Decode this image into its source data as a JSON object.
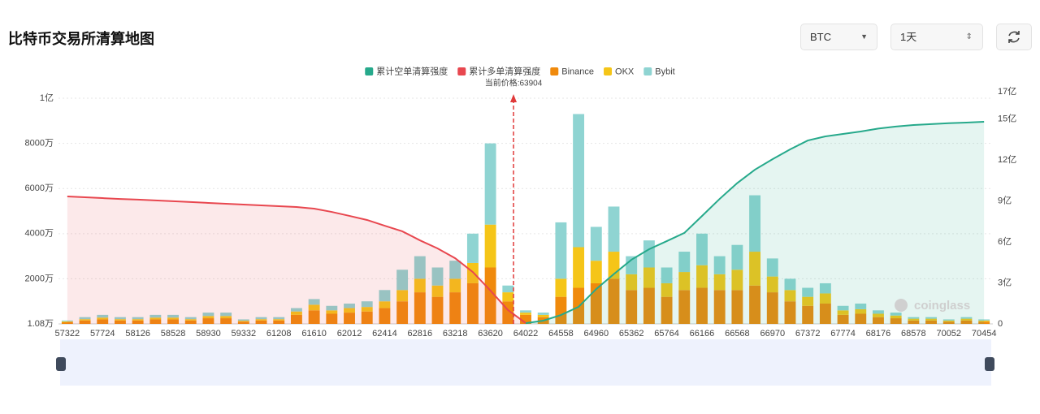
{
  "header": {
    "title": "比特币交易所清算地图",
    "coin": "BTC",
    "period": "1天"
  },
  "chart_data": {
    "type": "bar",
    "annotation": "当前价格:63904",
    "watermark": "coinglass",
    "legend_position": "top",
    "grid": true,
    "categories": [
      "57322",
      null,
      "57724",
      null,
      "58126",
      null,
      "58528",
      null,
      "58930",
      null,
      "59332",
      null,
      "61208",
      null,
      "61610",
      null,
      "62012",
      null,
      "62414",
      null,
      "62816",
      null,
      "63218",
      null,
      "63620",
      null,
      "64022",
      null,
      "64558",
      null,
      "64960",
      null,
      "65362",
      null,
      "65764",
      null,
      "66166",
      null,
      "66568",
      null,
      "66970",
      null,
      "67372",
      null,
      "67774",
      null,
      "68176",
      null,
      "68578",
      null,
      "70052",
      null,
      "70454"
    ],
    "ylim": [
      1.08,
      10290
    ],
    "yticks": [
      {
        "value": 1.08,
        "label": "1.08万"
      },
      {
        "value": 2000,
        "label": "2000万"
      },
      {
        "value": 4000,
        "label": "4000万"
      },
      {
        "value": 6000,
        "label": "6000万"
      },
      {
        "value": 8000,
        "label": "8000万"
      },
      {
        "value": 10000,
        "label": "1亿"
      }
    ],
    "y2lim": [
      0,
      17
    ],
    "y2ticks": [
      0,
      {
        "value": 3,
        "label": "3亿"
      },
      {
        "value": 6,
        "label": "6亿"
      },
      {
        "value": 9,
        "label": "9亿"
      },
      {
        "value": 12,
        "label": "12亿"
      },
      {
        "value": 15,
        "label": "15亿"
      },
      {
        "value": 17,
        "label": "17亿"
      }
    ],
    "series": [
      {
        "name": "累计空单清算强度",
        "type": "line",
        "axis": "y2",
        "area": true,
        "color": "#26a98b",
        "values": [
          null,
          null,
          null,
          null,
          null,
          null,
          null,
          null,
          null,
          null,
          null,
          null,
          null,
          null,
          null,
          null,
          null,
          null,
          null,
          null,
          null,
          null,
          null,
          null,
          null,
          null,
          0.05,
          0.24,
          0.65,
          1.25,
          2.55,
          3.65,
          4.7,
          5.47,
          6.06,
          6.66,
          7.9,
          9.15,
          10.31,
          11.29,
          12.06,
          12.78,
          13.43,
          13.73,
          13.91,
          14.09,
          14.3,
          14.45,
          14.56,
          14.63,
          14.7,
          14.74,
          14.8
        ]
      },
      {
        "name": "累计多单清算强度",
        "type": "line",
        "axis": "y2",
        "area": true,
        "color": "#e8474f",
        "values": [
          9.33,
          9.27,
          9.21,
          9.15,
          9.1,
          9.04,
          8.98,
          8.92,
          8.86,
          8.8,
          8.74,
          8.68,
          8.62,
          8.56,
          8.44,
          8.2,
          7.91,
          7.61,
          7.19,
          6.78,
          6.12,
          5.53,
          4.81,
          3.8,
          2.44,
          1.01,
          0.06,
          null,
          null,
          null,
          null,
          null,
          null,
          null,
          null,
          null,
          null,
          null,
          null,
          null,
          null,
          null,
          null,
          null,
          null,
          null,
          null,
          null,
          null,
          null,
          null,
          null,
          null
        ]
      },
      {
        "name": "Binance",
        "color": "#f08a0c",
        "values": [
          80,
          150,
          200,
          150,
          150,
          200,
          200,
          150,
          250,
          250,
          100,
          150,
          150,
          400,
          600,
          450,
          500,
          550,
          700,
          1000,
          1400,
          1200,
          1400,
          1800,
          2500,
          1000,
          400,
          300,
          1200,
          1600,
          1800,
          2000,
          1500,
          1600,
          1200,
          1500,
          1600,
          1500,
          1500,
          1700,
          1400,
          1000,
          800,
          900,
          400,
          450,
          300,
          250,
          150,
          150,
          100,
          150,
          100
        ]
      },
      {
        "name": "OKX",
        "color": "#f5c518",
        "values": [
          30,
          60,
          80,
          60,
          60,
          80,
          80,
          60,
          100,
          100,
          40,
          60,
          60,
          150,
          250,
          150,
          200,
          200,
          300,
          500,
          600,
          500,
          600,
          900,
          1900,
          400,
          100,
          100,
          800,
          1800,
          1000,
          1200,
          700,
          900,
          600,
          800,
          1000,
          700,
          900,
          1500,
          700,
          500,
          400,
          450,
          200,
          200,
          150,
          120,
          80,
          80,
          50,
          80,
          50
        ]
      },
      {
        "name": "Bybit",
        "color": "#8fd4d2",
        "values": [
          40,
          90,
          120,
          90,
          90,
          120,
          120,
          90,
          150,
          150,
          60,
          90,
          90,
          150,
          250,
          200,
          200,
          250,
          500,
          900,
          1000,
          800,
          800,
          1300,
          3600,
          300,
          100,
          100,
          2500,
          5900,
          1500,
          2000,
          800,
          1200,
          700,
          900,
          1400,
          800,
          1100,
          2500,
          800,
          500,
          400,
          450,
          200,
          250,
          150,
          130,
          70,
          70,
          50,
          70,
          50
        ]
      }
    ]
  }
}
